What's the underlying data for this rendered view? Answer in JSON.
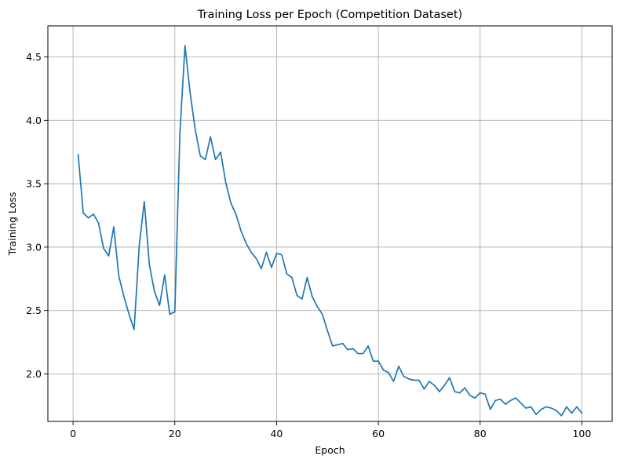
{
  "chart_data": {
    "type": "line",
    "title": "Training Loss per Epoch (Competition Dataset)",
    "xlabel": "Epoch",
    "ylabel": "Training Loss",
    "xlim": [
      -4.95,
      105.95
    ],
    "ylim": [
      1.625,
      4.745
    ],
    "xticks": [
      0,
      20,
      40,
      60,
      80,
      100
    ],
    "yticks": [
      2.0,
      2.5,
      3.0,
      3.5,
      4.0,
      4.5
    ],
    "ytick_labels": [
      "2.0",
      "2.5",
      "3.0",
      "3.5",
      "4.0",
      "4.5"
    ],
    "grid": true,
    "line_color": "#1f77b4",
    "x": [
      1,
      2,
      3,
      4,
      5,
      6,
      7,
      8,
      9,
      10,
      11,
      12,
      13,
      14,
      15,
      16,
      17,
      18,
      19,
      20,
      21,
      22,
      23,
      24,
      25,
      26,
      27,
      28,
      29,
      30,
      31,
      32,
      33,
      34,
      35,
      36,
      37,
      38,
      39,
      40,
      41,
      42,
      43,
      44,
      45,
      46,
      47,
      48,
      49,
      50,
      51,
      52,
      53,
      54,
      55,
      56,
      57,
      58,
      59,
      60,
      61,
      62,
      63,
      64,
      65,
      66,
      67,
      68,
      69,
      70,
      71,
      72,
      73,
      74,
      75,
      76,
      77,
      78,
      79,
      80,
      81,
      82,
      83,
      84,
      85,
      86,
      87,
      88,
      89,
      90,
      91,
      92,
      93,
      94,
      95,
      96,
      97,
      98,
      99,
      100
    ],
    "series": [
      {
        "values": [
          3.73,
          3.27,
          3.23,
          3.26,
          3.19,
          2.99,
          2.93,
          3.16,
          2.77,
          2.61,
          2.47,
          2.35,
          3.01,
          3.36,
          2.86,
          2.65,
          2.54,
          2.78,
          2.47,
          2.49,
          3.9,
          4.59,
          4.22,
          3.93,
          3.72,
          3.69,
          3.87,
          3.69,
          3.75,
          3.51,
          3.35,
          3.26,
          3.13,
          3.03,
          2.96,
          2.91,
          2.83,
          2.96,
          2.84,
          2.95,
          2.94,
          2.79,
          2.76,
          2.62,
          2.59,
          2.76,
          2.61,
          2.53,
          2.47,
          2.34,
          2.22,
          2.23,
          2.24,
          2.19,
          2.2,
          2.16,
          2.16,
          2.22,
          2.1,
          2.1,
          2.03,
          2.01,
          1.94,
          2.06,
          1.98,
          1.96,
          1.95,
          1.95,
          1.88,
          1.94,
          1.91,
          1.86,
          1.91,
          1.97,
          1.86,
          1.85,
          1.89,
          1.83,
          1.81,
          1.85,
          1.84,
          1.72,
          1.79,
          1.8,
          1.76,
          1.79,
          1.81,
          1.77,
          1.73,
          1.74,
          1.68,
          1.72,
          1.74,
          1.73,
          1.71,
          1.67,
          1.74,
          1.69,
          1.74,
          1.69
        ]
      }
    ]
  }
}
